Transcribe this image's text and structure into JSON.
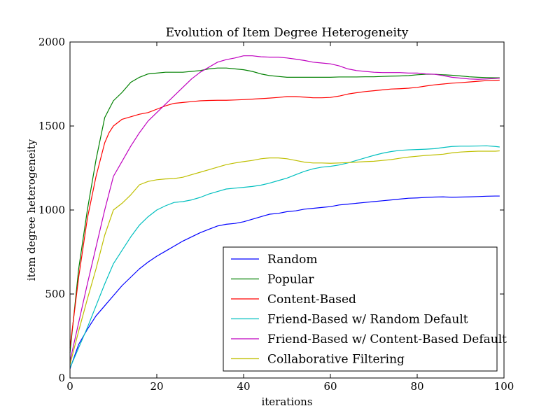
{
  "chart_data": {
    "type": "line",
    "title": "Evolution of Item Degree Heterogeneity",
    "xlabel": "iterations",
    "ylabel": "item degree heterogeneity",
    "xlim": [
      0,
      100
    ],
    "ylim": [
      0,
      2000
    ],
    "xticks": [
      0,
      20,
      40,
      60,
      80,
      100
    ],
    "yticks": [
      0,
      500,
      1000,
      1500,
      2000
    ],
    "grid": false,
    "legend_position": "lower-right",
    "series": [
      {
        "name": "Random",
        "color": "#0000ff",
        "points": [
          [
            0,
            55
          ],
          [
            2,
            200
          ],
          [
            4,
            290
          ],
          [
            6,
            370
          ],
          [
            8,
            430
          ],
          [
            10,
            490
          ],
          [
            12,
            550
          ],
          [
            14,
            600
          ],
          [
            16,
            650
          ],
          [
            18,
            690
          ],
          [
            20,
            725
          ],
          [
            22,
            755
          ],
          [
            24,
            785
          ],
          [
            26,
            815
          ],
          [
            28,
            840
          ],
          [
            30,
            865
          ],
          [
            32,
            885
          ],
          [
            34,
            905
          ],
          [
            36,
            915
          ],
          [
            38,
            920
          ],
          [
            40,
            930
          ],
          [
            42,
            945
          ],
          [
            44,
            960
          ],
          [
            46,
            975
          ],
          [
            48,
            980
          ],
          [
            50,
            990
          ],
          [
            52,
            995
          ],
          [
            54,
            1005
          ],
          [
            56,
            1010
          ],
          [
            58,
            1015
          ],
          [
            60,
            1020
          ],
          [
            62,
            1030
          ],
          [
            64,
            1035
          ],
          [
            66,
            1040
          ],
          [
            68,
            1045
          ],
          [
            70,
            1050
          ],
          [
            72,
            1055
          ],
          [
            74,
            1060
          ],
          [
            76,
            1065
          ],
          [
            78,
            1070
          ],
          [
            80,
            1072
          ],
          [
            82,
            1075
          ],
          [
            84,
            1077
          ],
          [
            86,
            1078
          ],
          [
            88,
            1076
          ],
          [
            90,
            1077
          ],
          [
            92,
            1078
          ],
          [
            94,
            1080
          ],
          [
            96,
            1082
          ],
          [
            98,
            1083
          ],
          [
            99,
            1083
          ]
        ]
      },
      {
        "name": "Popular",
        "color": "#008000",
        "points": [
          [
            0,
            150
          ],
          [
            2,
            650
          ],
          [
            4,
            1000
          ],
          [
            6,
            1300
          ],
          [
            8,
            1550
          ],
          [
            9,
            1600
          ],
          [
            10,
            1650
          ],
          [
            12,
            1700
          ],
          [
            14,
            1760
          ],
          [
            16,
            1790
          ],
          [
            18,
            1810
          ],
          [
            20,
            1815
          ],
          [
            22,
            1820
          ],
          [
            24,
            1820
          ],
          [
            26,
            1820
          ],
          [
            28,
            1825
          ],
          [
            30,
            1830
          ],
          [
            32,
            1840
          ],
          [
            34,
            1845
          ],
          [
            36,
            1845
          ],
          [
            38,
            1840
          ],
          [
            40,
            1835
          ],
          [
            42,
            1825
          ],
          [
            44,
            1810
          ],
          [
            46,
            1800
          ],
          [
            48,
            1795
          ],
          [
            50,
            1790
          ],
          [
            52,
            1790
          ],
          [
            54,
            1790
          ],
          [
            56,
            1790
          ],
          [
            58,
            1790
          ],
          [
            60,
            1790
          ],
          [
            62,
            1792
          ],
          [
            64,
            1792
          ],
          [
            66,
            1792
          ],
          [
            68,
            1793
          ],
          [
            70,
            1793
          ],
          [
            72,
            1795
          ],
          [
            74,
            1797
          ],
          [
            76,
            1798
          ],
          [
            78,
            1800
          ],
          [
            80,
            1805
          ],
          [
            82,
            1808
          ],
          [
            84,
            1808
          ],
          [
            86,
            1805
          ],
          [
            88,
            1802
          ],
          [
            90,
            1798
          ],
          [
            92,
            1793
          ],
          [
            94,
            1790
          ],
          [
            96,
            1788
          ],
          [
            98,
            1787
          ],
          [
            99,
            1787
          ]
        ]
      },
      {
        "name": "Content-Based",
        "color": "#ff0000",
        "points": [
          [
            0,
            180
          ],
          [
            2,
            600
          ],
          [
            4,
            950
          ],
          [
            6,
            1200
          ],
          [
            8,
            1400
          ],
          [
            9,
            1460
          ],
          [
            10,
            1500
          ],
          [
            12,
            1540
          ],
          [
            14,
            1555
          ],
          [
            16,
            1570
          ],
          [
            18,
            1580
          ],
          [
            20,
            1600
          ],
          [
            22,
            1620
          ],
          [
            24,
            1635
          ],
          [
            26,
            1640
          ],
          [
            28,
            1645
          ],
          [
            30,
            1650
          ],
          [
            32,
            1652
          ],
          [
            34,
            1653
          ],
          [
            36,
            1653
          ],
          [
            38,
            1655
          ],
          [
            40,
            1657
          ],
          [
            42,
            1660
          ],
          [
            44,
            1663
          ],
          [
            46,
            1666
          ],
          [
            48,
            1670
          ],
          [
            50,
            1675
          ],
          [
            52,
            1675
          ],
          [
            54,
            1672
          ],
          [
            56,
            1668
          ],
          [
            58,
            1668
          ],
          [
            60,
            1670
          ],
          [
            62,
            1678
          ],
          [
            64,
            1690
          ],
          [
            66,
            1698
          ],
          [
            68,
            1705
          ],
          [
            70,
            1710
          ],
          [
            72,
            1715
          ],
          [
            74,
            1720
          ],
          [
            76,
            1722
          ],
          [
            78,
            1725
          ],
          [
            80,
            1730
          ],
          [
            82,
            1738
          ],
          [
            84,
            1745
          ],
          [
            86,
            1750
          ],
          [
            88,
            1755
          ],
          [
            90,
            1758
          ],
          [
            92,
            1762
          ],
          [
            94,
            1766
          ],
          [
            96,
            1770
          ],
          [
            98,
            1772
          ],
          [
            99,
            1773
          ]
        ]
      },
      {
        "name": "Friend-Based w/ Random Default",
        "color": "#00bfbf",
        "points": [
          [
            0,
            60
          ],
          [
            2,
            180
          ],
          [
            4,
            300
          ],
          [
            6,
            430
          ],
          [
            8,
            560
          ],
          [
            10,
            680
          ],
          [
            12,
            760
          ],
          [
            14,
            840
          ],
          [
            16,
            910
          ],
          [
            18,
            960
          ],
          [
            20,
            1000
          ],
          [
            22,
            1025
          ],
          [
            24,
            1045
          ],
          [
            26,
            1050
          ],
          [
            28,
            1060
          ],
          [
            30,
            1075
          ],
          [
            32,
            1095
          ],
          [
            34,
            1110
          ],
          [
            36,
            1125
          ],
          [
            38,
            1130
          ],
          [
            40,
            1135
          ],
          [
            42,
            1140
          ],
          [
            44,
            1148
          ],
          [
            46,
            1160
          ],
          [
            48,
            1175
          ],
          [
            50,
            1190
          ],
          [
            52,
            1210
          ],
          [
            54,
            1230
          ],
          [
            56,
            1245
          ],
          [
            58,
            1255
          ],
          [
            60,
            1260
          ],
          [
            62,
            1268
          ],
          [
            64,
            1280
          ],
          [
            66,
            1295
          ],
          [
            68,
            1310
          ],
          [
            70,
            1325
          ],
          [
            72,
            1338
          ],
          [
            74,
            1348
          ],
          [
            76,
            1355
          ],
          [
            78,
            1358
          ],
          [
            80,
            1360
          ],
          [
            82,
            1362
          ],
          [
            84,
            1365
          ],
          [
            86,
            1372
          ],
          [
            88,
            1378
          ],
          [
            90,
            1380
          ],
          [
            92,
            1380
          ],
          [
            94,
            1381
          ],
          [
            96,
            1382
          ],
          [
            98,
            1378
          ],
          [
            99,
            1375
          ]
        ]
      },
      {
        "name": "Friend-Based w/ Content-Based Default",
        "color": "#bf00bf",
        "points": [
          [
            0,
            100
          ],
          [
            2,
            330
          ],
          [
            4,
            560
          ],
          [
            6,
            780
          ],
          [
            8,
            1000
          ],
          [
            10,
            1200
          ],
          [
            12,
            1290
          ],
          [
            14,
            1380
          ],
          [
            16,
            1460
          ],
          [
            18,
            1530
          ],
          [
            20,
            1580
          ],
          [
            22,
            1630
          ],
          [
            24,
            1680
          ],
          [
            26,
            1730
          ],
          [
            28,
            1780
          ],
          [
            30,
            1820
          ],
          [
            32,
            1850
          ],
          [
            34,
            1880
          ],
          [
            36,
            1895
          ],
          [
            38,
            1905
          ],
          [
            40,
            1918
          ],
          [
            42,
            1918
          ],
          [
            44,
            1912
          ],
          [
            46,
            1910
          ],
          [
            48,
            1910
          ],
          [
            50,
            1905
          ],
          [
            52,
            1898
          ],
          [
            54,
            1890
          ],
          [
            56,
            1880
          ],
          [
            58,
            1875
          ],
          [
            60,
            1870
          ],
          [
            62,
            1858
          ],
          [
            64,
            1840
          ],
          [
            66,
            1830
          ],
          [
            68,
            1825
          ],
          [
            70,
            1820
          ],
          [
            72,
            1818
          ],
          [
            74,
            1818
          ],
          [
            76,
            1818
          ],
          [
            78,
            1815
          ],
          [
            80,
            1815
          ],
          [
            82,
            1810
          ],
          [
            84,
            1808
          ],
          [
            86,
            1800
          ],
          [
            88,
            1790
          ],
          [
            90,
            1785
          ],
          [
            92,
            1780
          ],
          [
            94,
            1778
          ],
          [
            96,
            1780
          ],
          [
            98,
            1783
          ],
          [
            99,
            1785
          ]
        ]
      },
      {
        "name": "Collaborative Filtering",
        "color": "#bfbf00",
        "points": [
          [
            0,
            80
          ],
          [
            2,
            280
          ],
          [
            4,
            470
          ],
          [
            6,
            650
          ],
          [
            8,
            850
          ],
          [
            10,
            1000
          ],
          [
            12,
            1040
          ],
          [
            14,
            1090
          ],
          [
            16,
            1150
          ],
          [
            18,
            1170
          ],
          [
            20,
            1180
          ],
          [
            22,
            1185
          ],
          [
            24,
            1187
          ],
          [
            26,
            1195
          ],
          [
            28,
            1210
          ],
          [
            30,
            1225
          ],
          [
            32,
            1240
          ],
          [
            34,
            1255
          ],
          [
            36,
            1270
          ],
          [
            38,
            1280
          ],
          [
            40,
            1288
          ],
          [
            42,
            1295
          ],
          [
            44,
            1305
          ],
          [
            46,
            1310
          ],
          [
            48,
            1310
          ],
          [
            50,
            1305
          ],
          [
            52,
            1295
          ],
          [
            54,
            1285
          ],
          [
            56,
            1280
          ],
          [
            58,
            1280
          ],
          [
            60,
            1278
          ],
          [
            62,
            1280
          ],
          [
            64,
            1282
          ],
          [
            66,
            1285
          ],
          [
            68,
            1288
          ],
          [
            70,
            1290
          ],
          [
            72,
            1295
          ],
          [
            74,
            1300
          ],
          [
            76,
            1308
          ],
          [
            78,
            1315
          ],
          [
            80,
            1320
          ],
          [
            82,
            1325
          ],
          [
            84,
            1328
          ],
          [
            86,
            1332
          ],
          [
            88,
            1340
          ],
          [
            90,
            1345
          ],
          [
            92,
            1348
          ],
          [
            94,
            1350
          ],
          [
            96,
            1350
          ],
          [
            98,
            1350
          ],
          [
            99,
            1352
          ]
        ]
      }
    ]
  }
}
